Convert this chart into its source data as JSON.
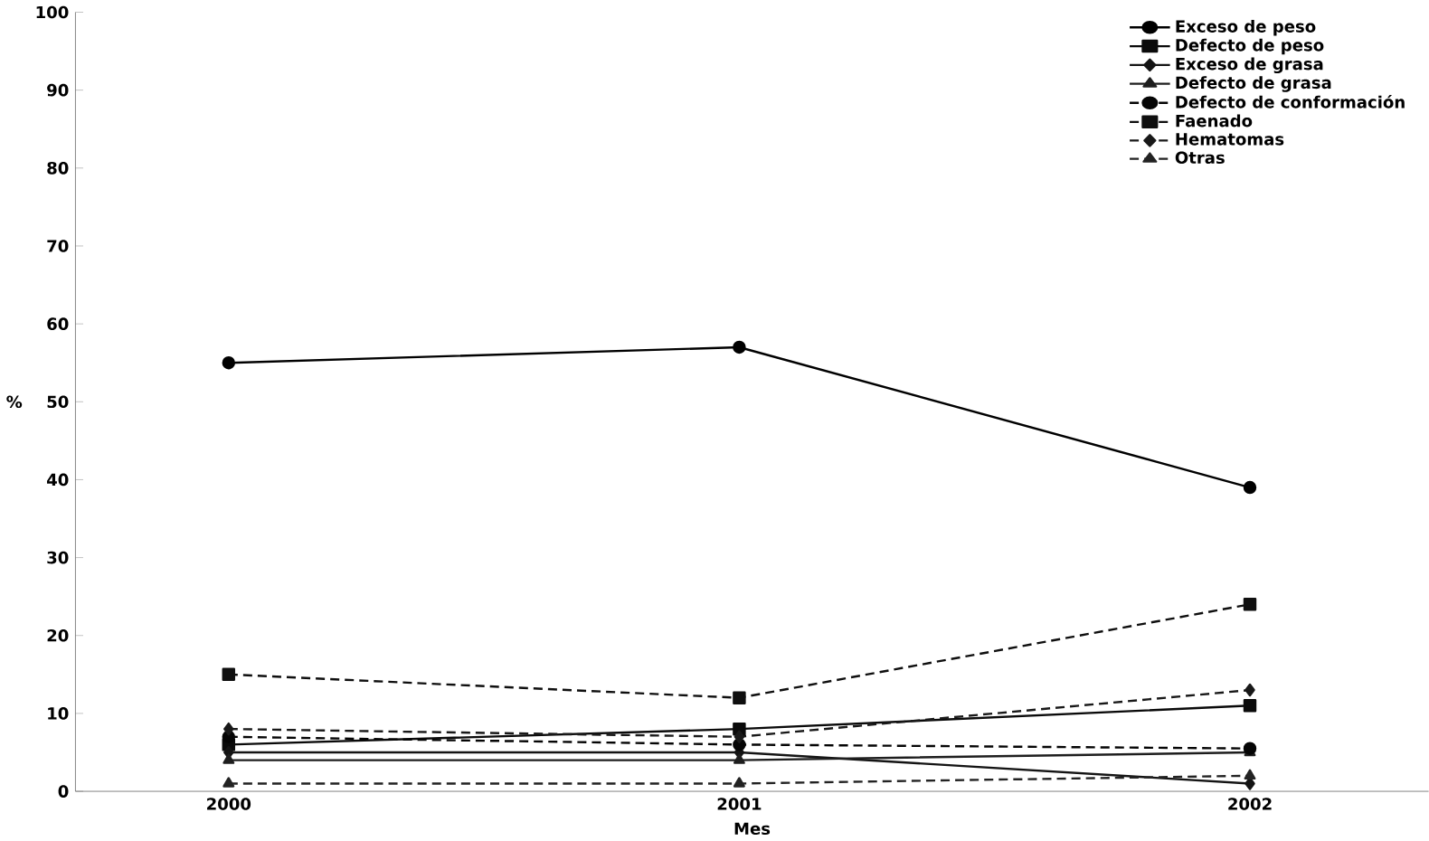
{
  "chart_data": {
    "type": "line",
    "xlabel": "Mes",
    "ylabel": "%",
    "categories": [
      "2000",
      "2001",
      "2002"
    ],
    "ylim": [
      0,
      100
    ],
    "yticks": [
      0,
      10,
      20,
      30,
      40,
      50,
      60,
      70,
      80,
      90,
      100
    ],
    "legend": "top right",
    "grid": false,
    "series": [
      {
        "name": "Exceso de peso",
        "color": "#000000",
        "marker": "circle",
        "line_style": "solid",
        "values": [
          55,
          57,
          39
        ]
      },
      {
        "name": "Defecto de peso",
        "color": "#0a0a0a",
        "marker": "square",
        "line_style": "solid",
        "values": [
          6,
          8,
          11
        ]
      },
      {
        "name": "Exceso de grasa",
        "color": "#141414",
        "marker": "diamond",
        "line_style": "solid",
        "values": [
          5,
          5,
          1
        ]
      },
      {
        "name": "Defecto de grasa",
        "color": "#1e1e1e",
        "marker": "triangle",
        "line_style": "solid",
        "values": [
          4,
          4,
          5
        ]
      },
      {
        "name": "Defecto de conformación",
        "color": "#050505",
        "marker": "circle",
        "line_style": "dashed",
        "values": [
          7,
          6,
          5.5
        ]
      },
      {
        "name": "Faenado",
        "color": "#0f0f0f",
        "marker": "square",
        "line_style": "dashed",
        "values": [
          15,
          12,
          24
        ]
      },
      {
        "name": "Hematomas",
        "color": "#191919",
        "marker": "diamond",
        "line_style": "dashed",
        "values": [
          8,
          7,
          13
        ]
      },
      {
        "name": "Otras",
        "color": "#232323",
        "marker": "triangle",
        "line_style": "dashed",
        "values": [
          1,
          1,
          2
        ]
      }
    ]
  }
}
